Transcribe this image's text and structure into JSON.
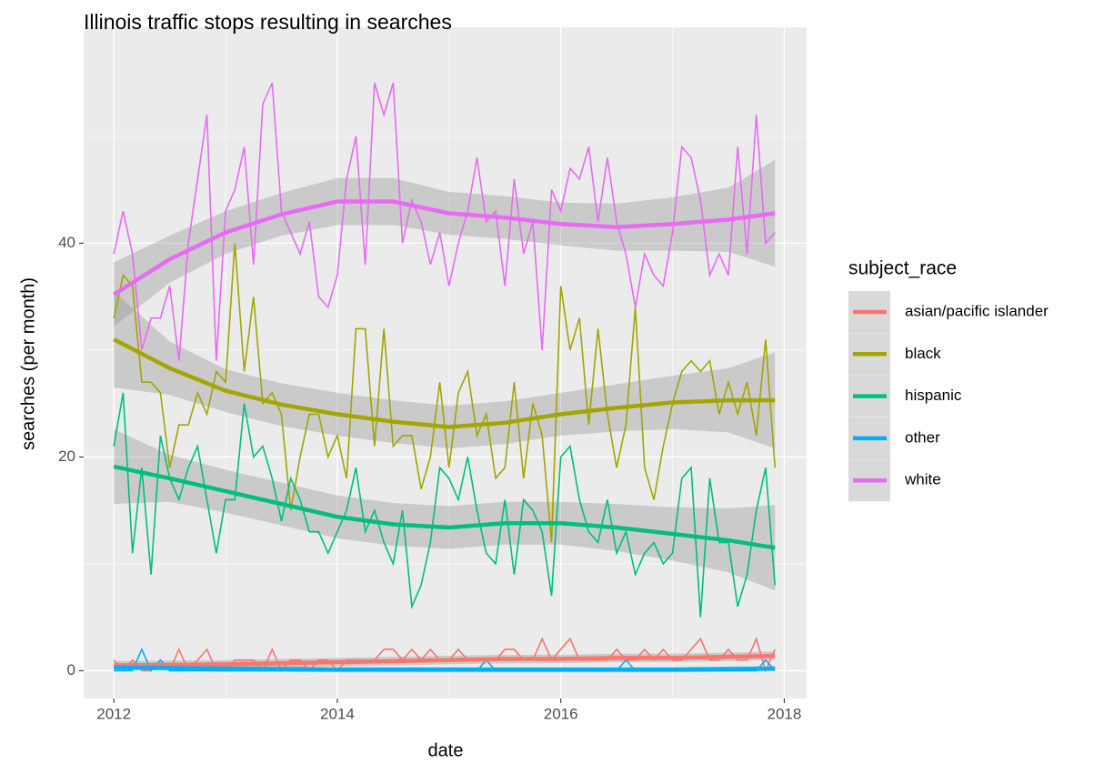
{
  "chart_data": {
    "type": "line",
    "title": "Illinois traffic stops resulting in searches",
    "x_label": "date",
    "y_label": "searches (per month)",
    "legend_title": "subject_race",
    "xlim": [
      2011.73,
      2018.2
    ],
    "ylim": [
      -2.6,
      60.2
    ],
    "xticks": [
      2012,
      2014,
      2016,
      2018
    ],
    "yticks": [
      0,
      20,
      40
    ],
    "xminor": [
      2013,
      2015,
      2017
    ],
    "yminor": [
      10,
      30,
      50
    ],
    "grid": true,
    "legend": "right",
    "x": [
      2012,
      2012.083,
      2012.167,
      2012.25,
      2012.333,
      2012.417,
      2012.5,
      2012.583,
      2012.667,
      2012.75,
      2012.833,
      2012.917,
      2013,
      2013.083,
      2013.167,
      2013.25,
      2013.333,
      2013.417,
      2013.5,
      2013.583,
      2013.667,
      2013.75,
      2013.833,
      2013.917,
      2014,
      2014.083,
      2014.167,
      2014.25,
      2014.333,
      2014.417,
      2014.5,
      2014.583,
      2014.667,
      2014.75,
      2014.833,
      2014.917,
      2015,
      2015.083,
      2015.167,
      2015.25,
      2015.333,
      2015.417,
      2015.5,
      2015.583,
      2015.667,
      2015.75,
      2015.833,
      2015.917,
      2016,
      2016.083,
      2016.167,
      2016.25,
      2016.333,
      2016.417,
      2016.5,
      2016.583,
      2016.667,
      2016.75,
      2016.833,
      2016.917,
      2017,
      2017.083,
      2017.167,
      2017.25,
      2017.333,
      2017.417,
      2017.5,
      2017.583,
      2017.667,
      2017.75,
      2017.833,
      2017.917
    ],
    "smooth_x": [
      2012,
      2012.5,
      2013,
      2013.5,
      2014,
      2014.5,
      2015,
      2015.5,
      2016,
      2016.5,
      2017,
      2017.5,
      2017.917
    ],
    "series": [
      {
        "name": "asian/pacific islander",
        "color": "#F8766D",
        "values": [
          1,
          0,
          1,
          0,
          0,
          1,
          0,
          2,
          0,
          1,
          2,
          0,
          0,
          1,
          1,
          1,
          0,
          2,
          0,
          1,
          1,
          0,
          1,
          1,
          0,
          1,
          1,
          1,
          1,
          2,
          2,
          1,
          2,
          1,
          2,
          1,
          1,
          2,
          1,
          1,
          1,
          1,
          2,
          2,
          1,
          1,
          3,
          1,
          2,
          3,
          1,
          1,
          1,
          1,
          2,
          1,
          1,
          2,
          1,
          2,
          1,
          1,
          2,
          3,
          1,
          1,
          2,
          1,
          1,
          3,
          0,
          2
        ],
        "smooth": {
          "values": [
            0.5,
            0.55,
            0.6,
            0.7,
            0.8,
            0.9,
            1.0,
            1.1,
            1.1,
            1.2,
            1.2,
            1.3,
            1.4
          ],
          "lower": [
            0.1,
            0.15,
            0.2,
            0.3,
            0.4,
            0.5,
            0.6,
            0.7,
            0.7,
            0.8,
            0.8,
            0.9,
            1.0
          ],
          "upper": [
            0.9,
            0.95,
            1.0,
            1.1,
            1.2,
            1.3,
            1.4,
            1.5,
            1.5,
            1.6,
            1.6,
            1.7,
            1.8
          ]
        }
      },
      {
        "name": "black",
        "color": "#A3A500",
        "values": [
          33,
          37,
          36,
          27,
          27,
          26,
          19,
          23,
          23,
          26,
          24,
          28,
          27,
          40,
          28,
          35,
          25,
          26,
          24,
          15,
          20,
          24,
          24,
          20,
          22,
          18,
          32,
          32,
          21,
          32,
          21,
          22,
          22,
          17,
          20,
          27,
          19,
          26,
          28,
          22,
          24,
          18,
          19,
          27,
          18,
          25,
          22,
          12,
          36,
          30,
          33,
          23,
          32,
          24,
          19,
          23,
          34,
          19,
          16,
          21,
          25,
          28,
          29,
          28,
          29,
          24,
          27,
          24,
          27,
          22,
          31,
          19
        ],
        "smooth": {
          "values": [
            31,
            28.3,
            26.2,
            24.9,
            24,
            23.3,
            22.8,
            23.2,
            24,
            24.6,
            25.1,
            25.3,
            25.3
          ],
          "lower": [
            26.5,
            25.8,
            24.2,
            22.9,
            22,
            21.3,
            20.8,
            21.2,
            22,
            22.4,
            22.6,
            22.3,
            20.8
          ],
          "upper": [
            35.5,
            30.8,
            28.2,
            26.9,
            26,
            25.3,
            24.8,
            25.2,
            26,
            26.8,
            27.6,
            28.3,
            29.8
          ]
        }
      },
      {
        "name": "hispanic",
        "color": "#00BF7D",
        "values": [
          21,
          26,
          11,
          19,
          9,
          22,
          18,
          16,
          19,
          21,
          16,
          11,
          16,
          16,
          25,
          20,
          21,
          18,
          14,
          18,
          16,
          13,
          13,
          11,
          13,
          15,
          19,
          13,
          15,
          12,
          10,
          15,
          6,
          8,
          12,
          19,
          18,
          16,
          20,
          15,
          11,
          10,
          16,
          9,
          16,
          15,
          13,
          7,
          20,
          21,
          16,
          13,
          12,
          16,
          11,
          13,
          9,
          11,
          12,
          10,
          11,
          18,
          19,
          5,
          18,
          12,
          12,
          6,
          9,
          15,
          19,
          8
        ],
        "smooth": {
          "values": [
            19.1,
            18,
            16.8,
            15.6,
            14.4,
            13.7,
            13.4,
            13.8,
            13.8,
            13.4,
            12.8,
            12.2,
            11.5
          ],
          "lower": [
            15.6,
            15.8,
            14.8,
            13.6,
            12.4,
            11.7,
            11.4,
            11.8,
            11.8,
            11.2,
            10.3,
            9.2,
            7.5
          ],
          "upper": [
            22.6,
            20.2,
            18.8,
            17.6,
            16.4,
            15.7,
            15.4,
            15.8,
            15.8,
            15.6,
            15.3,
            15.2,
            15.5
          ]
        }
      },
      {
        "name": "other",
        "color": "#00B0F6",
        "values": [
          0,
          0,
          0,
          2,
          0,
          1,
          0,
          0,
          0,
          0,
          0,
          0,
          0,
          0,
          0,
          0,
          0,
          0,
          0,
          0,
          0,
          0,
          0,
          0,
          0,
          0,
          0,
          0,
          0,
          0,
          0,
          0,
          0,
          0,
          0,
          0,
          0,
          0,
          0,
          0,
          1,
          0,
          0,
          0,
          0,
          0,
          0,
          0,
          0,
          0,
          0,
          0,
          0,
          0,
          0,
          1,
          0,
          0,
          0,
          0,
          0,
          0,
          0,
          0,
          0,
          0,
          0,
          0,
          0,
          0,
          1,
          0
        ],
        "smooth": {
          "values": [
            0.3,
            0.25,
            0.2,
            0.15,
            0.1,
            0.1,
            0.1,
            0.1,
            0.1,
            0.1,
            0.1,
            0.15,
            0.2
          ],
          "lower": [
            0.05,
            0,
            -0.05,
            -0.1,
            -0.15,
            -0.15,
            -0.15,
            -0.15,
            -0.15,
            -0.15,
            -0.15,
            -0.1,
            -0.05
          ],
          "upper": [
            0.55,
            0.5,
            0.45,
            0.4,
            0.35,
            0.35,
            0.35,
            0.35,
            0.35,
            0.35,
            0.35,
            0.4,
            0.45
          ]
        }
      },
      {
        "name": "white",
        "color": "#E76BF3",
        "values": [
          39,
          43,
          39,
          30,
          33,
          33,
          36,
          29,
          40,
          46,
          52,
          29,
          43,
          45,
          49,
          38,
          53,
          55,
          43,
          41,
          39,
          42,
          35,
          34,
          37,
          46,
          50,
          38,
          55,
          52,
          55,
          40,
          44,
          42,
          38,
          41,
          36,
          40,
          43,
          48,
          42,
          43,
          36,
          46,
          39,
          42,
          30,
          45,
          43,
          47,
          46,
          49,
          42,
          48,
          42,
          39,
          34,
          39,
          37,
          36,
          41,
          49,
          48,
          44,
          37,
          39,
          37,
          49,
          39,
          52,
          40,
          41
        ],
        "smooth": {
          "values": [
            35.2,
            38.5,
            41,
            42.7,
            43.9,
            43.9,
            42.8,
            42.4,
            41.8,
            41.5,
            41.8,
            42.2,
            42.8
          ],
          "lower": [
            32.2,
            36.3,
            39,
            40.7,
            41.7,
            41.7,
            40.8,
            40.4,
            39.8,
            39.3,
            39.3,
            39.2,
            37.8
          ],
          "upper": [
            38.2,
            40.7,
            43,
            44.7,
            46.1,
            46.1,
            44.8,
            44.4,
            43.8,
            43.7,
            44.3,
            45.2,
            47.8
          ]
        }
      }
    ]
  }
}
